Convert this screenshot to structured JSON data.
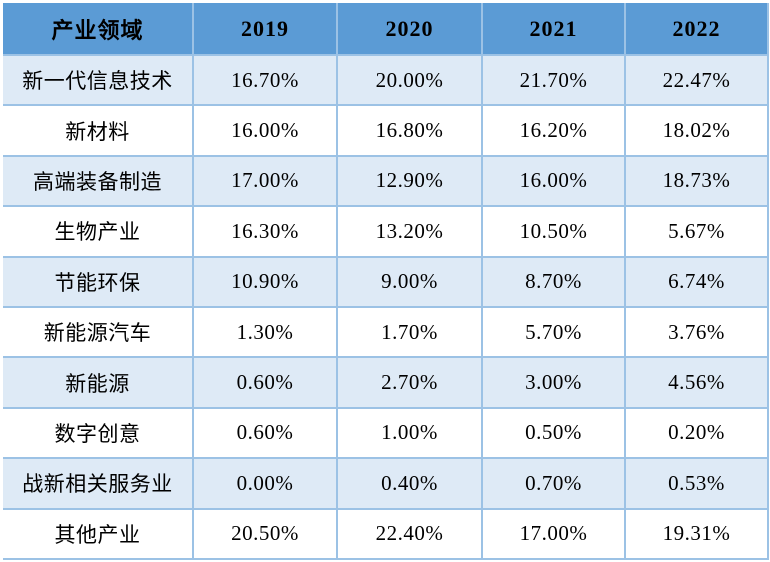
{
  "colors": {
    "header_bg": "#5B9BD5",
    "band_bg": "#DEEAF6",
    "border": "#9CC2E5",
    "text": "#000000"
  },
  "table": {
    "columns": [
      "产业领域",
      "2019",
      "2020",
      "2021",
      "2022"
    ],
    "rows": [
      {
        "label": "新一代信息技术",
        "values": [
          "16.70%",
          "20.00%",
          "21.70%",
          "22.47%"
        ]
      },
      {
        "label": "新材料",
        "values": [
          "16.00%",
          "16.80%",
          "16.20%",
          "18.02%"
        ]
      },
      {
        "label": "高端装备制造",
        "values": [
          "17.00%",
          "12.90%",
          "16.00%",
          "18.73%"
        ]
      },
      {
        "label": "生物产业",
        "values": [
          "16.30%",
          "13.20%",
          "10.50%",
          "5.67%"
        ]
      },
      {
        "label": "节能环保",
        "values": [
          "10.90%",
          "9.00%",
          "8.70%",
          "6.74%"
        ]
      },
      {
        "label": "新能源汽车",
        "values": [
          "1.30%",
          "1.70%",
          "5.70%",
          "3.76%"
        ]
      },
      {
        "label": "新能源",
        "values": [
          "0.60%",
          "2.70%",
          "3.00%",
          "4.56%"
        ]
      },
      {
        "label": "数字创意",
        "values": [
          "0.60%",
          "1.00%",
          "0.50%",
          "0.20%"
        ]
      },
      {
        "label": "战新相关服务业",
        "values": [
          "0.00%",
          "0.40%",
          "0.70%",
          "0.53%"
        ]
      },
      {
        "label": "其他产业",
        "values": [
          "20.50%",
          "22.40%",
          "17.00%",
          "19.31%"
        ]
      }
    ]
  },
  "chart_data": {
    "type": "table",
    "title": "",
    "xlabel": "产业领域",
    "ylabel": "",
    "unit": "%",
    "categories": [
      "新一代信息技术",
      "新材料",
      "高端装备制造",
      "生物产业",
      "节能环保",
      "新能源汽车",
      "新能源",
      "数字创意",
      "战新相关服务业",
      "其他产业"
    ],
    "series": [
      {
        "name": "2019",
        "values": [
          16.7,
          16.0,
          17.0,
          16.3,
          10.9,
          1.3,
          0.6,
          0.6,
          0.0,
          20.5
        ]
      },
      {
        "name": "2020",
        "values": [
          20.0,
          16.8,
          12.9,
          13.2,
          9.0,
          1.7,
          2.7,
          1.0,
          0.4,
          22.4
        ]
      },
      {
        "name": "2021",
        "values": [
          21.7,
          16.2,
          16.0,
          10.5,
          8.7,
          5.7,
          3.0,
          0.5,
          0.7,
          17.0
        ]
      },
      {
        "name": "2022",
        "values": [
          22.47,
          18.02,
          18.73,
          5.67,
          6.74,
          3.76,
          4.56,
          0.2,
          0.53,
          19.31
        ]
      }
    ],
    "layout": {
      "banded_rows": true,
      "header_fill": "#5B9BD5",
      "band_fill": "#DEEAF6",
      "grid": true,
      "legend_position": "none"
    }
  }
}
